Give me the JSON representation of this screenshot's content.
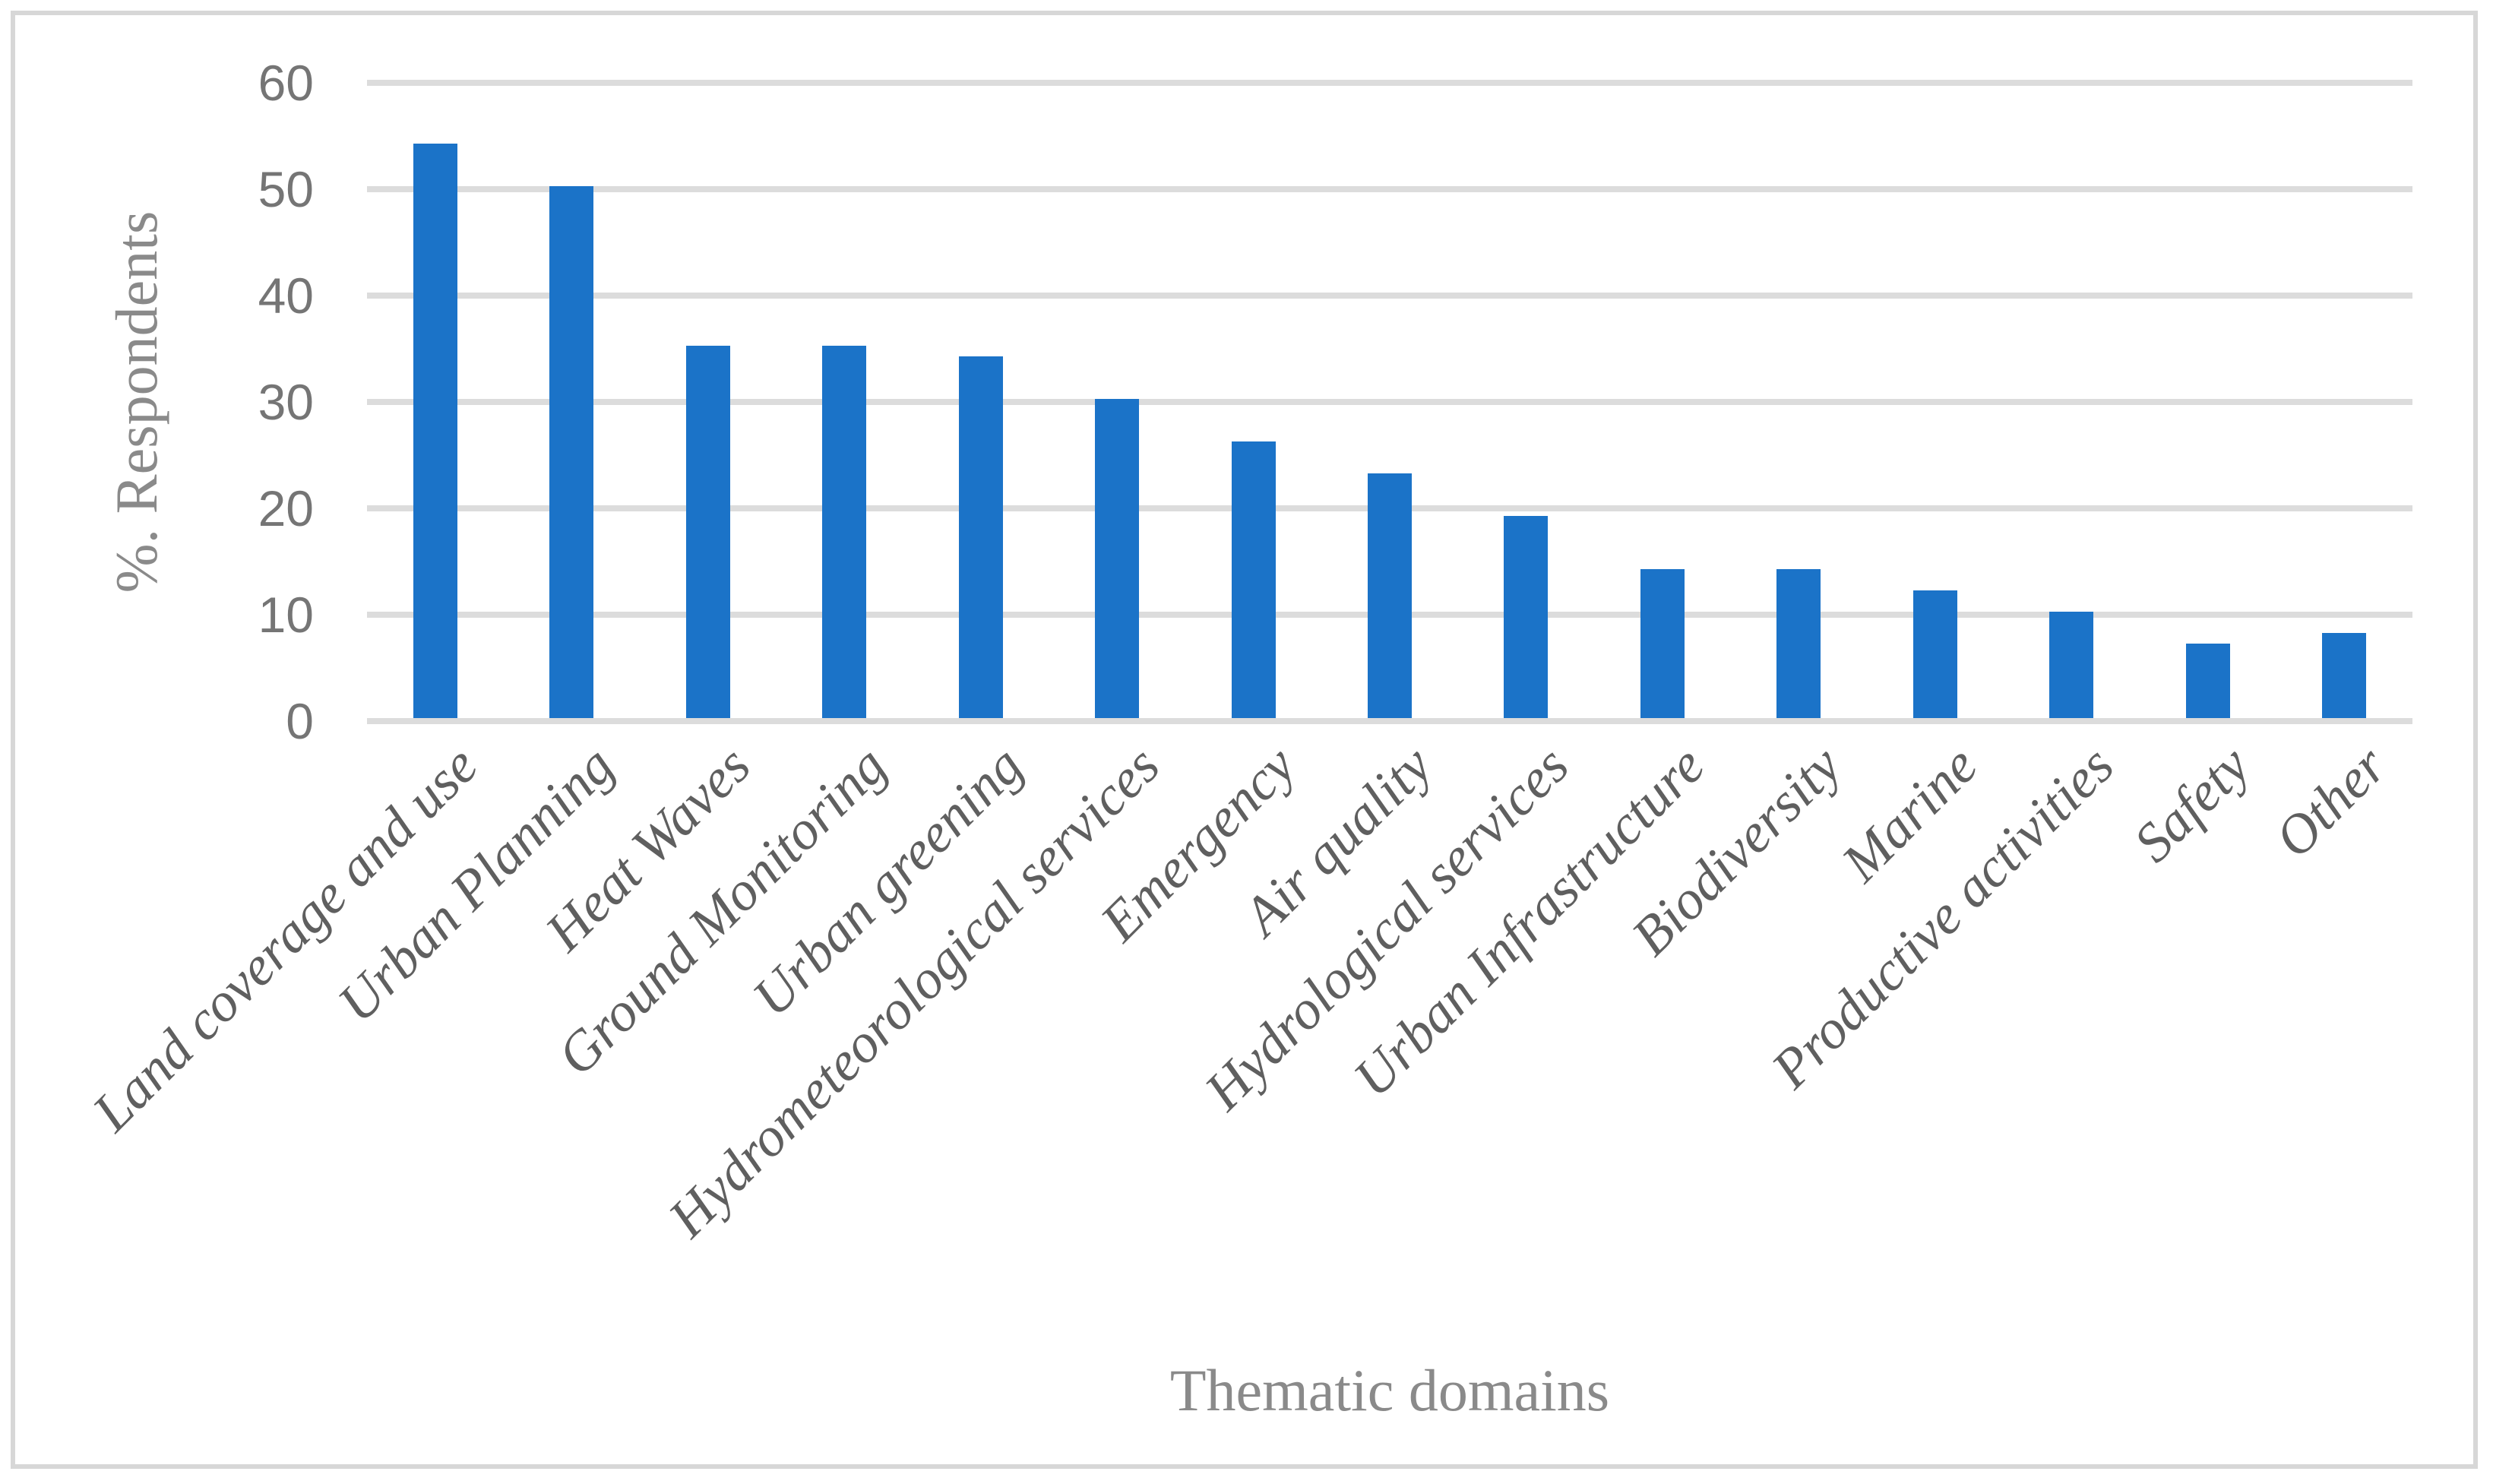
{
  "figure": {
    "background": "#ffffff",
    "border_color": "#d7d7d7"
  },
  "chart_data": {
    "type": "bar",
    "title": "",
    "xlabel": "Thematic domains",
    "ylabel": "%. Respondents",
    "categories": [
      "Land coverage and use",
      "Urban Planning",
      "Heat Waves",
      "Ground Monitoring",
      "Urban greening",
      "Hydrometeorological services",
      "Emergency",
      "Air quality",
      "Hydrological services",
      "Urban Infrastructure",
      "Biodiversity",
      "Marine",
      "Productive activities",
      "Safety",
      "Other"
    ],
    "values": [
      54,
      50,
      35,
      35,
      34,
      30,
      26,
      23,
      19,
      14,
      14,
      12,
      10,
      7,
      8
    ],
    "yticks": [
      0,
      10,
      20,
      30,
      40,
      50,
      60
    ],
    "ylim": [
      0,
      60
    ],
    "grid": true,
    "legend": false,
    "bar_color": "#1b73c8",
    "gridline_color": "#dcdcdc",
    "tick_label_color": "#757575",
    "axis_title_color": "#8a8a8a",
    "category_label_color": "#5f5f5f"
  }
}
